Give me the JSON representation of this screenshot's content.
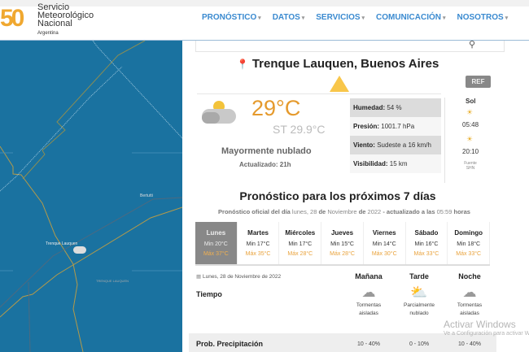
{
  "header": {
    "logo_number": "50",
    "logo_lines": [
      "Servicio",
      "Meteorológico",
      "Nacional"
    ],
    "logo_country": "Argentina",
    "nav": [
      "PRONÓSTICO",
      "DATOS",
      "SERVICIOS",
      "COMUNICACIÓN",
      "NOSOTROS"
    ]
  },
  "map": {
    "labels": [
      "Bertutti",
      "Trenque Lauquen",
      "TRENQUE LAUQUEN"
    ]
  },
  "location": "Trenque Lauquen, Buenos Aires",
  "ref_label": "REF",
  "current": {
    "temp": "29°C",
    "st": "ST 29.9°C",
    "condition": "Mayormente nublado",
    "updated": "Actualizado: 21h",
    "details": [
      {
        "label": "Humedad:",
        "value": "54 %"
      },
      {
        "label": "Presión:",
        "value": "1001.7 hPa"
      },
      {
        "label": "Viento:",
        "value": "Sudeste a 16 km/h"
      },
      {
        "label": "Visibilidad:",
        "value": "15 km"
      }
    ],
    "sun": {
      "title": "Sol",
      "sunrise": "05:48",
      "sunset": "20:10",
      "source": "Fuente",
      "source2": "SHN"
    }
  },
  "forecast": {
    "title": "Pronóstico para los próximos 7 días",
    "sub": {
      "a": "Pronóstico oficial del día",
      "b": "lunes, 28",
      "c": "de",
      "d": "Noviembre",
      "e": "de",
      "f": "2022",
      "g": "- actualizado a las",
      "h": "05:59",
      "i": "horas"
    },
    "days": [
      {
        "name": "Lunes",
        "min": "Min 20°C",
        "max": "Máx 37°C"
      },
      {
        "name": "Martes",
        "min": "Min 17°C",
        "max": "Máx 35°C"
      },
      {
        "name": "Miércoles",
        "min": "Min 17°C",
        "max": "Máx 28°C"
      },
      {
        "name": "Jueves",
        "min": "Min 15°C",
        "max": "Máx 28°C"
      },
      {
        "name": "Viernes",
        "min": "Min 14°C",
        "max": "Máx 30°C"
      },
      {
        "name": "Sábado",
        "min": "Min 16°C",
        "max": "Máx 33°C"
      },
      {
        "name": "Domingo",
        "min": "Min 18°C",
        "max": "Máx 33°C"
      }
    ]
  },
  "detail": {
    "date": "Lunes, 28 de Noviembre de 2022",
    "periods": [
      "Mañana",
      "Tarde",
      "Noche"
    ],
    "tiempo_label": "Tiempo",
    "weather": [
      {
        "icon": "storm-cloud",
        "l1": "Tormentas",
        "l2": "aisladas"
      },
      {
        "icon": "partly-cloudy",
        "l1": "Parcialmente",
        "l2": "nublado"
      },
      {
        "icon": "storm-cloud",
        "l1": "Tormentas",
        "l2": "aisladas"
      }
    ],
    "prob_label": "Prob. Precipitación",
    "prob": [
      "10 - 40%",
      "0 - 10%",
      "10 - 40%"
    ]
  },
  "watermark": {
    "l1": "Activar Windows",
    "l2": "Ve a Configuración para activar Windows."
  },
  "colors": {
    "accent": "#3a8ad0",
    "temp": "#e59a2d",
    "map": "#1a72a0"
  }
}
